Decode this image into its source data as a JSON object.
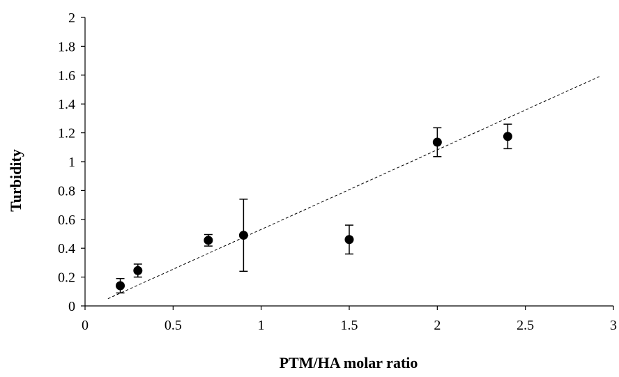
{
  "chart_data": {
    "type": "scatter",
    "title": "",
    "xlabel": "PTM/HA molar ratio",
    "ylabel": "Turbidity",
    "xlim": [
      0,
      3
    ],
    "ylim": [
      0,
      2
    ],
    "x_ticks": [
      "0",
      "0.5",
      "1",
      "1.5",
      "2",
      "2.5",
      "3"
    ],
    "y_ticks": [
      "0",
      "0.2",
      "0.4",
      "0.6",
      "0.8",
      "1",
      "1.2",
      "1.4",
      "1.6",
      "1.8",
      "2"
    ],
    "grid": false,
    "legend": "none",
    "points": [
      {
        "x": 0.2,
        "y": 0.14,
        "err": 0.05
      },
      {
        "x": 0.3,
        "y": 0.245,
        "err": 0.045
      },
      {
        "x": 0.7,
        "y": 0.455,
        "err": 0.04
      },
      {
        "x": 0.9,
        "y": 0.49,
        "err": 0.25
      },
      {
        "x": 1.5,
        "y": 0.46,
        "err": 0.1
      },
      {
        "x": 2.0,
        "y": 1.135,
        "err": 0.1
      },
      {
        "x": 2.4,
        "y": 1.175,
        "err": 0.085
      }
    ],
    "trendline": {
      "style": "dashed",
      "x": [
        0.13,
        2.92
      ],
      "y": [
        0.05,
        1.59
      ]
    },
    "marker_color": "#000000"
  }
}
